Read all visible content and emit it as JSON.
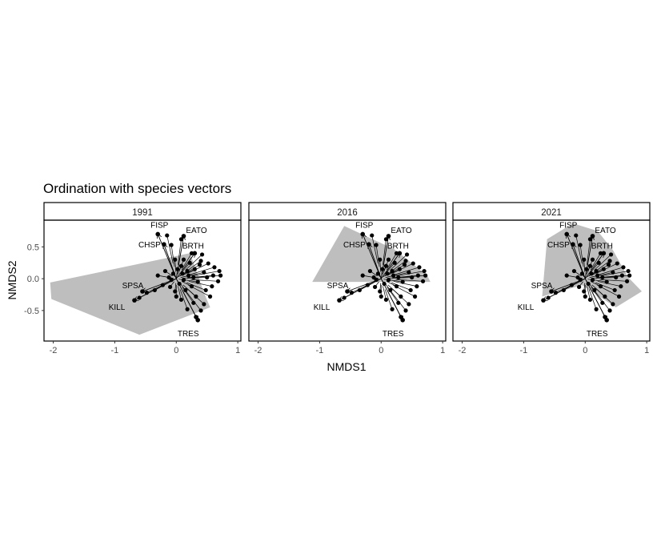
{
  "chart_data": {
    "type": "scatter",
    "title": "Ordination with species vectors",
    "xlabel": "NMDS1",
    "ylabel": "NMDS2",
    "xlim": [
      -2.15,
      1.05
    ],
    "ylim": [
      -0.98,
      0.92
    ],
    "x_ticks": [
      -2,
      -1,
      0,
      1
    ],
    "x_tick_labels": [
      "-2",
      "-1",
      "0",
      "1"
    ],
    "y_ticks": [
      -0.5,
      0.0,
      0.5
    ],
    "y_tick_labels": [
      "-0.5",
      "0.0",
      "0.5"
    ],
    "grid": false,
    "legend": "none",
    "colors": {
      "hull": "#bebebe",
      "points": "#000000",
      "panel_border": "#000000",
      "strip_fill": "#ffffff"
    },
    "species": [
      {
        "name": "FISP",
        "x": -0.3,
        "y": 0.7
      },
      {
        "name": "EATO",
        "x": 0.12,
        "y": 0.67
      },
      {
        "name": "CHSP",
        "x": -0.2,
        "y": 0.54
      },
      {
        "name": "BRTH",
        "x": 0.3,
        "y": 0.4
      },
      {
        "name": "SPSA",
        "x": -0.55,
        "y": -0.2
      },
      {
        "name": "KILL",
        "x": -0.68,
        "y": -0.34
      },
      {
        "name": "TRES",
        "x": 0.35,
        "y": -0.65
      }
    ],
    "sites": [
      {
        "x": -0.15,
        "y": 0.68
      },
      {
        "x": -0.08,
        "y": 0.53
      },
      {
        "x": 0.08,
        "y": 0.62
      },
      {
        "x": 0.12,
        "y": 0.3
      },
      {
        "x": 0.25,
        "y": 0.4
      },
      {
        "x": 0.42,
        "y": 0.38
      },
      {
        "x": 0.52,
        "y": 0.24
      },
      {
        "x": 0.62,
        "y": 0.18
      },
      {
        "x": 0.7,
        "y": 0.12
      },
      {
        "x": 0.72,
        "y": 0.05
      },
      {
        "x": 0.68,
        "y": -0.04
      },
      {
        "x": 0.58,
        "y": -0.12
      },
      {
        "x": 0.55,
        "y": -0.28
      },
      {
        "x": 0.45,
        "y": -0.4
      },
      {
        "x": 0.4,
        "y": -0.5
      },
      {
        "x": 0.32,
        "y": -0.6
      },
      {
        "x": 0.18,
        "y": -0.48
      },
      {
        "x": 0.08,
        "y": -0.33
      },
      {
        "x": -0.02,
        "y": -0.2
      },
      {
        "x": -0.1,
        "y": -0.13
      },
      {
        "x": -0.22,
        "y": -0.1
      },
      {
        "x": -0.35,
        "y": -0.18
      },
      {
        "x": -0.48,
        "y": -0.22
      },
      {
        "x": -0.6,
        "y": -0.3
      },
      {
        "x": -0.3,
        "y": 0.05
      },
      {
        "x": -0.18,
        "y": 0.12
      },
      {
        "x": -0.05,
        "y": 0.08
      },
      {
        "x": 0.02,
        "y": 0.15
      },
      {
        "x": 0.1,
        "y": 0.08
      },
      {
        "x": 0.2,
        "y": 0.05
      },
      {
        "x": 0.3,
        "y": 0.15
      },
      {
        "x": 0.38,
        "y": 0.22
      },
      {
        "x": 0.45,
        "y": 0.1
      },
      {
        "x": 0.5,
        "y": 0.02
      },
      {
        "x": 0.35,
        "y": -0.05
      },
      {
        "x": 0.25,
        "y": -0.12
      },
      {
        "x": 0.15,
        "y": -0.18
      },
      {
        "x": 0.05,
        "y": -0.08
      },
      {
        "x": -0.08,
        "y": -0.02
      },
      {
        "x": 0.12,
        "y": -0.02
      },
      {
        "x": 0.22,
        "y": 0.25
      },
      {
        "x": 0.32,
        "y": -0.28
      },
      {
        "x": 0.48,
        "y": -0.18
      },
      {
        "x": 0.6,
        "y": 0.05
      },
      {
        "x": 0.4,
        "y": 0.28
      },
      {
        "x": 0.0,
        "y": -0.28
      },
      {
        "x": 0.28,
        "y": -0.38
      },
      {
        "x": -0.12,
        "y": 0.02
      },
      {
        "x": 0.18,
        "y": 0.12
      },
      {
        "x": 0.28,
        "y": 0.02
      },
      {
        "x": 0.08,
        "y": 0.2
      },
      {
        "x": -0.02,
        "y": 0.3
      }
    ],
    "facets": [
      {
        "label": "1991",
        "hull": [
          [
            -2.05,
            -0.06
          ],
          [
            0.22,
            0.4
          ],
          [
            0.28,
            0.25
          ],
          [
            0.45,
            -0.22
          ],
          [
            0.55,
            -0.45
          ],
          [
            -0.6,
            -0.88
          ],
          [
            -2.03,
            -0.32
          ]
        ]
      },
      {
        "label": "2016",
        "hull": [
          [
            -1.12,
            -0.05
          ],
          [
            -0.6,
            0.83
          ],
          [
            0.22,
            0.46
          ],
          [
            0.75,
            0.05
          ],
          [
            0.8,
            -0.05
          ],
          [
            -0.8,
            -0.05
          ]
        ]
      },
      {
        "label": "2021",
        "hull": [
          [
            -0.62,
            0.62
          ],
          [
            -0.2,
            0.87
          ],
          [
            0.2,
            0.75
          ],
          [
            0.45,
            0.45
          ],
          [
            0.7,
            0.02
          ],
          [
            0.92,
            -0.2
          ],
          [
            0.5,
            -0.45
          ],
          [
            -0.05,
            -0.1
          ],
          [
            -0.7,
            -0.28
          ]
        ]
      }
    ]
  }
}
